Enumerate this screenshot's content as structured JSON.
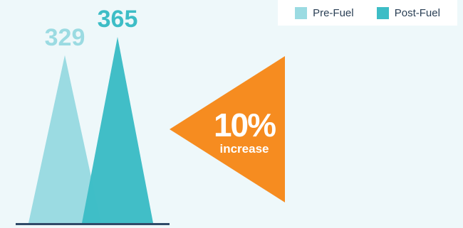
{
  "chart_data": {
    "type": "bar",
    "series": [
      {
        "name": "Pre-Fuel",
        "value": 329,
        "label": "329",
        "color": "#9bdbe2"
      },
      {
        "name": "Post-Fuel",
        "value": 365,
        "label": "365",
        "color": "#3dbdc6"
      }
    ],
    "callout": {
      "value": "10%",
      "label": "increase",
      "color": "#f68c20",
      "text_color": "#ffffff"
    },
    "baseline_color": "#2f4a68",
    "background": "#eef8fa"
  },
  "legend": {
    "items": [
      {
        "label": "Pre-Fuel",
        "color": "#9bdbe2"
      },
      {
        "label": "Post-Fuel",
        "color": "#3dbdc6"
      }
    ]
  }
}
